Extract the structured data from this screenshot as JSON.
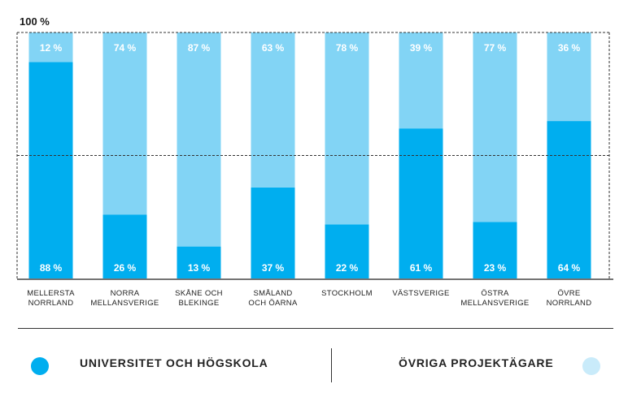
{
  "chart_data": {
    "type": "bar",
    "stacked": true,
    "title": "",
    "xlabel": "",
    "ylabel": "",
    "ylim": [
      0,
      100
    ],
    "y_max_label": "100 %",
    "gridlines": [
      50,
      100
    ],
    "categories": [
      [
        "MELLERSTA",
        "NORRLAND"
      ],
      [
        "NORRA",
        "MELLANSVERIGE"
      ],
      [
        "SKÅNE OCH",
        "BLEKINGE"
      ],
      [
        "SMÅLAND",
        "OCH ÖARNA"
      ],
      [
        "STOCKHOLM"
      ],
      [
        "VÄSTSVERIGE"
      ],
      [
        "ÖSTRA",
        "MELLANSVERIGE"
      ],
      [
        "ÖVRE",
        "NORRLAND"
      ]
    ],
    "series": [
      {
        "name": "UNIVERSITET OCH HÖGSKOLA",
        "color": "#00aeef",
        "values": [
          88,
          26,
          13,
          37,
          22,
          61,
          23,
          64
        ],
        "labels": [
          "88 %",
          "26 %",
          "13 %",
          "37 %",
          "22 %",
          "61 %",
          "23 %",
          "64 %"
        ]
      },
      {
        "name": "ÖVRIGA PROJEKTÄGARE",
        "color": "#82d4f5",
        "values": [
          12,
          74,
          87,
          63,
          78,
          39,
          77,
          36
        ],
        "labels": [
          "12 %",
          "74 %",
          "87 %",
          "63 %",
          "78 %",
          "39 %",
          "77 %",
          "36 %"
        ]
      }
    ]
  },
  "legend": {
    "left_label": "UNIVERSITET OCH HÖGSKOLA",
    "left_color": "#00aeef",
    "right_label": "ÖVRIGA PROJEKTÄGARE",
    "right_color": "#c9ebfa"
  }
}
